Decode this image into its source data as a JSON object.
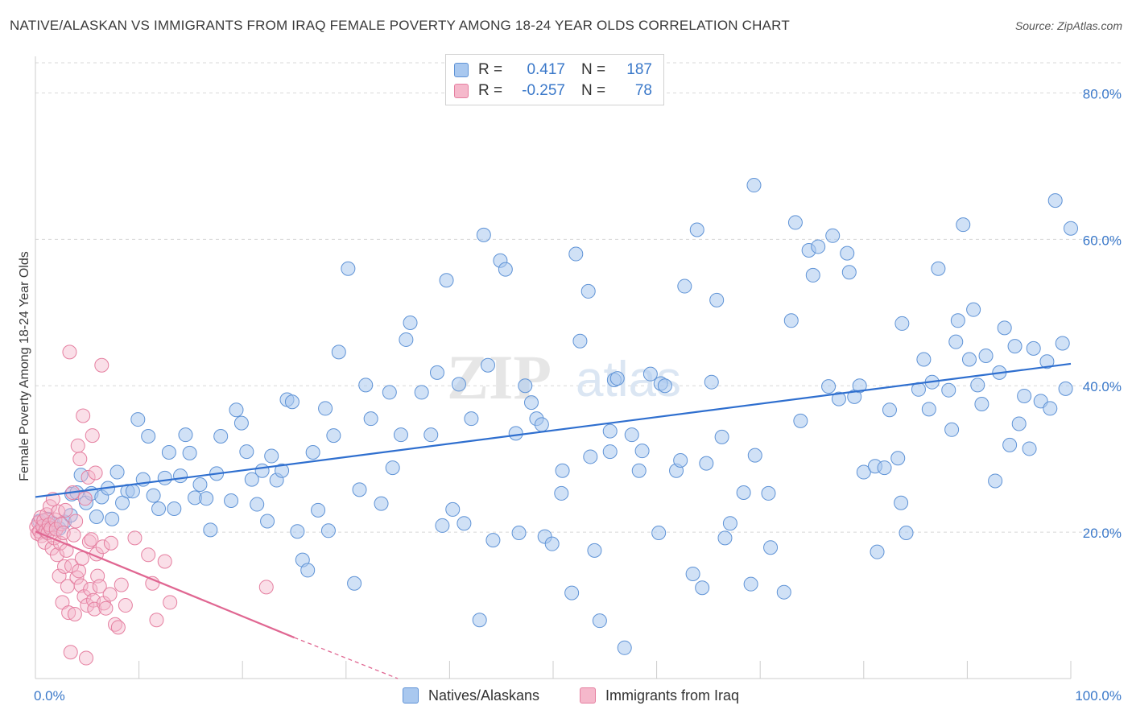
{
  "title": "NATIVE/ALASKAN VS IMMIGRANTS FROM IRAQ FEMALE POVERTY AMONG 18-24 YEAR OLDS CORRELATION CHART",
  "source": "Source: ZipAtlas.com",
  "legend": {
    "rows": [
      {
        "r_label": "R =",
        "r_value": "0.417",
        "n_label": "N =",
        "n_value": "187"
      },
      {
        "r_label": "R =",
        "r_value": "-0.257",
        "n_label": "N =",
        "n_value": "78"
      }
    ]
  },
  "colors": {
    "blue_fill": "#a9c8ef",
    "blue_stroke": "#5f93d6",
    "blue_line": "#2f6fcf",
    "pink_fill": "#f5b8cb",
    "pink_stroke": "#e57fa0",
    "pink_line": "#e06792",
    "axis_text": "#3a78c9",
    "grid": "#d8d8d8"
  },
  "watermark": {
    "zip": "ZIP",
    "atlas": "atlas"
  },
  "chart_data": {
    "type": "scatter",
    "title": "NATIVE/ALASKAN VS IMMIGRANTS FROM IRAQ FEMALE POVERTY AMONG 18-24 YEAR OLDS CORRELATION CHART",
    "xlabel": "",
    "ylabel": "Female Poverty Among 18-24 Year Olds",
    "xlim": [
      0,
      100
    ],
    "ylim": [
      0,
      85
    ],
    "x_tick_labels": [
      "0.0%",
      "100.0%"
    ],
    "y_ticks": [
      20,
      40,
      60,
      80
    ],
    "y_tick_labels": [
      "20.0%",
      "40.0%",
      "60.0%",
      "80.0%"
    ],
    "grid": true,
    "legend_position": "top-center",
    "series": [
      {
        "name": "Natives/Alaskans",
        "trend": {
          "x": [
            0,
            100
          ],
          "y": [
            24.8,
            43.0
          ]
        },
        "points": [
          [
            0.4,
            21.5
          ],
          [
            0.8,
            20.6
          ],
          [
            1.2,
            21.8
          ],
          [
            1.7,
            21.2
          ],
          [
            2.3,
            20.5
          ],
          [
            2.8,
            21.4
          ],
          [
            3.4,
            22.3
          ],
          [
            3.5,
            25.2
          ],
          [
            4.0,
            25.4
          ],
          [
            4.4,
            27.8
          ],
          [
            4.9,
            24.0
          ],
          [
            5.4,
            25.3
          ],
          [
            5.9,
            22.1
          ],
          [
            6.4,
            24.8
          ],
          [
            7.0,
            26.0
          ],
          [
            7.4,
            21.8
          ],
          [
            7.9,
            28.2
          ],
          [
            8.4,
            24.0
          ],
          [
            8.9,
            25.6
          ],
          [
            9.4,
            25.6
          ],
          [
            9.9,
            35.4
          ],
          [
            10.4,
            27.2
          ],
          [
            10.9,
            33.1
          ],
          [
            11.4,
            25.0
          ],
          [
            11.9,
            23.2
          ],
          [
            12.5,
            27.4
          ],
          [
            12.9,
            30.9
          ],
          [
            13.4,
            23.2
          ],
          [
            14.0,
            27.7
          ],
          [
            14.5,
            33.3
          ],
          [
            14.9,
            30.8
          ],
          [
            15.4,
            24.7
          ],
          [
            15.9,
            26.5
          ],
          [
            16.5,
            24.6
          ],
          [
            16.9,
            20.3
          ],
          [
            17.5,
            28.0
          ],
          [
            17.9,
            33.1
          ],
          [
            18.9,
            24.3
          ],
          [
            19.4,
            36.7
          ],
          [
            19.9,
            34.9
          ],
          [
            20.4,
            31.0
          ],
          [
            20.9,
            27.2
          ],
          [
            21.4,
            23.8
          ],
          [
            21.9,
            28.4
          ],
          [
            22.4,
            21.5
          ],
          [
            22.8,
            30.4
          ],
          [
            23.3,
            27.1
          ],
          [
            23.8,
            28.4
          ],
          [
            24.3,
            38.1
          ],
          [
            24.8,
            37.8
          ],
          [
            25.3,
            20.1
          ],
          [
            25.8,
            16.2
          ],
          [
            26.3,
            14.8
          ],
          [
            26.8,
            30.9
          ],
          [
            27.3,
            23.0
          ],
          [
            28.0,
            36.9
          ],
          [
            28.3,
            20.2
          ],
          [
            28.8,
            33.2
          ],
          [
            29.3,
            44.6
          ],
          [
            30.2,
            56.0
          ],
          [
            30.8,
            13.0
          ],
          [
            31.3,
            25.8
          ],
          [
            31.9,
            40.1
          ],
          [
            32.4,
            35.5
          ],
          [
            33.4,
            23.9
          ],
          [
            34.2,
            39.1
          ],
          [
            34.5,
            28.8
          ],
          [
            35.3,
            33.3
          ],
          [
            35.8,
            46.3
          ],
          [
            36.2,
            48.6
          ],
          [
            37.3,
            39.1
          ],
          [
            38.2,
            33.3
          ],
          [
            38.8,
            41.8
          ],
          [
            39.3,
            20.9
          ],
          [
            39.7,
            54.4
          ],
          [
            40.3,
            23.1
          ],
          [
            40.9,
            40.2
          ],
          [
            41.4,
            21.2
          ],
          [
            42.1,
            35.5
          ],
          [
            42.9,
            8.0
          ],
          [
            43.3,
            60.6
          ],
          [
            43.7,
            42.8
          ],
          [
            44.2,
            18.9
          ],
          [
            44.9,
            57.1
          ],
          [
            45.4,
            55.9
          ],
          [
            46.4,
            33.5
          ],
          [
            46.7,
            19.9
          ],
          [
            47.3,
            40.0
          ],
          [
            47.9,
            37.7
          ],
          [
            48.4,
            35.5
          ],
          [
            48.9,
            34.7
          ],
          [
            49.2,
            19.4
          ],
          [
            49.9,
            18.4
          ],
          [
            50.8,
            25.3
          ],
          [
            50.9,
            28.4
          ],
          [
            51.8,
            11.7
          ],
          [
            52.2,
            58.0
          ],
          [
            52.6,
            46.1
          ],
          [
            53.4,
            52.9
          ],
          [
            53.6,
            30.3
          ],
          [
            54.0,
            17.5
          ],
          [
            54.5,
            7.9
          ],
          [
            55.5,
            33.8
          ],
          [
            55.5,
            31.0
          ],
          [
            55.9,
            40.8
          ],
          [
            56.2,
            41.0
          ],
          [
            56.9,
            4.2
          ],
          [
            57.6,
            33.3
          ],
          [
            58.3,
            28.4
          ],
          [
            58.6,
            31.1
          ],
          [
            59.4,
            41.6
          ],
          [
            60.2,
            19.9
          ],
          [
            60.4,
            40.3
          ],
          [
            60.8,
            40.0
          ],
          [
            61.9,
            28.4
          ],
          [
            62.3,
            29.8
          ],
          [
            62.7,
            53.6
          ],
          [
            63.5,
            14.3
          ],
          [
            63.9,
            61.3
          ],
          [
            64.4,
            12.4
          ],
          [
            64.8,
            29.4
          ],
          [
            65.3,
            40.5
          ],
          [
            65.8,
            51.7
          ],
          [
            66.3,
            33.0
          ],
          [
            66.6,
            19.2
          ],
          [
            67.1,
            21.2
          ],
          [
            68.4,
            25.4
          ],
          [
            69.1,
            12.9
          ],
          [
            69.4,
            67.4
          ],
          [
            69.5,
            30.5
          ],
          [
            70.8,
            25.3
          ],
          [
            71.0,
            17.9
          ],
          [
            72.3,
            11.8
          ],
          [
            73.0,
            48.9
          ],
          [
            73.4,
            62.3
          ],
          [
            73.9,
            35.2
          ],
          [
            74.7,
            58.5
          ],
          [
            75.1,
            55.1
          ],
          [
            75.6,
            59.0
          ],
          [
            76.6,
            39.9
          ],
          [
            77.0,
            60.5
          ],
          [
            77.6,
            38.2
          ],
          [
            78.4,
            58.1
          ],
          [
            78.6,
            55.5
          ],
          [
            79.1,
            38.5
          ],
          [
            79.6,
            40.0
          ],
          [
            80.0,
            28.2
          ],
          [
            81.1,
            29.0
          ],
          [
            81.3,
            17.3
          ],
          [
            82.0,
            28.8
          ],
          [
            82.5,
            36.7
          ],
          [
            83.3,
            30.1
          ],
          [
            83.6,
            24.0
          ],
          [
            83.7,
            48.5
          ],
          [
            84.1,
            19.9
          ],
          [
            85.3,
            39.5
          ],
          [
            85.8,
            43.6
          ],
          [
            86.3,
            36.8
          ],
          [
            86.6,
            40.5
          ],
          [
            87.2,
            56.0
          ],
          [
            88.2,
            39.4
          ],
          [
            88.5,
            34.0
          ],
          [
            88.9,
            46.0
          ],
          [
            89.1,
            48.9
          ],
          [
            89.6,
            62.0
          ],
          [
            90.2,
            43.6
          ],
          [
            90.6,
            50.4
          ],
          [
            91.0,
            40.1
          ],
          [
            91.4,
            37.5
          ],
          [
            91.8,
            44.1
          ],
          [
            92.7,
            27.0
          ],
          [
            93.1,
            41.8
          ],
          [
            93.6,
            47.9
          ],
          [
            94.1,
            31.9
          ],
          [
            94.6,
            45.4
          ],
          [
            95.0,
            34.8
          ],
          [
            95.5,
            38.6
          ],
          [
            96.0,
            31.4
          ],
          [
            96.4,
            45.1
          ],
          [
            97.1,
            37.9
          ],
          [
            97.7,
            43.3
          ],
          [
            98.0,
            36.9
          ],
          [
            98.5,
            65.3
          ],
          [
            99.2,
            45.8
          ],
          [
            99.5,
            39.6
          ],
          [
            100.0,
            61.5
          ],
          [
            1.0,
            20.1
          ]
        ]
      },
      {
        "name": "Immigrants from Iraq",
        "trend": {
          "x": [
            0,
            25.0
          ],
          "y": [
            20.1,
            5.6
          ]
        },
        "trend_dashed": {
          "x": [
            25.0,
            35.0
          ],
          "y": [
            5.6,
            0.0
          ]
        },
        "points": [
          [
            0.1,
            20.7
          ],
          [
            0.2,
            19.8
          ],
          [
            0.3,
            21.3
          ],
          [
            0.4,
            20.1
          ],
          [
            0.5,
            22.0
          ],
          [
            0.6,
            19.5
          ],
          [
            0.7,
            20.8
          ],
          [
            0.8,
            21.6
          ],
          [
            0.9,
            18.6
          ],
          [
            1.0,
            20.2
          ],
          [
            1.1,
            22.4
          ],
          [
            1.2,
            19.9
          ],
          [
            1.3,
            21.0
          ],
          [
            1.4,
            23.5
          ],
          [
            1.5,
            20.5
          ],
          [
            1.6,
            17.8
          ],
          [
            1.7,
            24.5
          ],
          [
            1.8,
            19.2
          ],
          [
            1.9,
            21.7
          ],
          [
            2.0,
            20.4
          ],
          [
            2.1,
            16.9
          ],
          [
            2.2,
            22.8
          ],
          [
            2.3,
            14.0
          ],
          [
            2.4,
            18.5
          ],
          [
            2.5,
            21.1
          ],
          [
            2.6,
            10.4
          ],
          [
            2.7,
            19.9
          ],
          [
            2.8,
            15.3
          ],
          [
            2.9,
            23.0
          ],
          [
            3.0,
            17.5
          ],
          [
            3.1,
            12.6
          ],
          [
            3.2,
            9.0
          ],
          [
            3.3,
            44.6
          ],
          [
            3.4,
            3.6
          ],
          [
            3.5,
            15.4
          ],
          [
            3.6,
            25.4
          ],
          [
            3.7,
            19.6
          ],
          [
            3.8,
            8.8
          ],
          [
            3.9,
            21.5
          ],
          [
            4.0,
            13.8
          ],
          [
            4.1,
            31.8
          ],
          [
            4.2,
            14.7
          ],
          [
            4.3,
            30.0
          ],
          [
            4.4,
            12.7
          ],
          [
            4.5,
            16.4
          ],
          [
            4.6,
            35.9
          ],
          [
            4.7,
            11.2
          ],
          [
            4.8,
            24.6
          ],
          [
            4.9,
            2.8
          ],
          [
            5.0,
            10.0
          ],
          [
            5.1,
            27.5
          ],
          [
            5.2,
            18.7
          ],
          [
            5.3,
            12.2
          ],
          [
            5.4,
            19.0
          ],
          [
            5.5,
            33.2
          ],
          [
            5.6,
            10.7
          ],
          [
            5.7,
            9.5
          ],
          [
            5.8,
            28.1
          ],
          [
            5.9,
            17.0
          ],
          [
            6.0,
            14.0
          ],
          [
            6.2,
            12.6
          ],
          [
            6.4,
            42.8
          ],
          [
            6.5,
            18.0
          ],
          [
            6.6,
            10.3
          ],
          [
            6.8,
            9.6
          ],
          [
            7.2,
            11.5
          ],
          [
            7.3,
            18.5
          ],
          [
            7.7,
            7.4
          ],
          [
            8.0,
            7.0
          ],
          [
            8.3,
            12.8
          ],
          [
            8.7,
            10.0
          ],
          [
            9.6,
            19.2
          ],
          [
            10.9,
            16.9
          ],
          [
            11.3,
            13.0
          ],
          [
            11.7,
            8.0
          ],
          [
            12.5,
            16.0
          ],
          [
            13.0,
            10.4
          ],
          [
            22.3,
            12.5
          ]
        ]
      }
    ]
  },
  "x_axis": {
    "left_label": "0.0%",
    "right_label": "100.0%"
  },
  "y_axis_title": "Female Poverty Among 18-24 Year Olds",
  "bottom_legend": {
    "blue": "Natives/Alaskans",
    "pink": "Immigrants from Iraq"
  }
}
